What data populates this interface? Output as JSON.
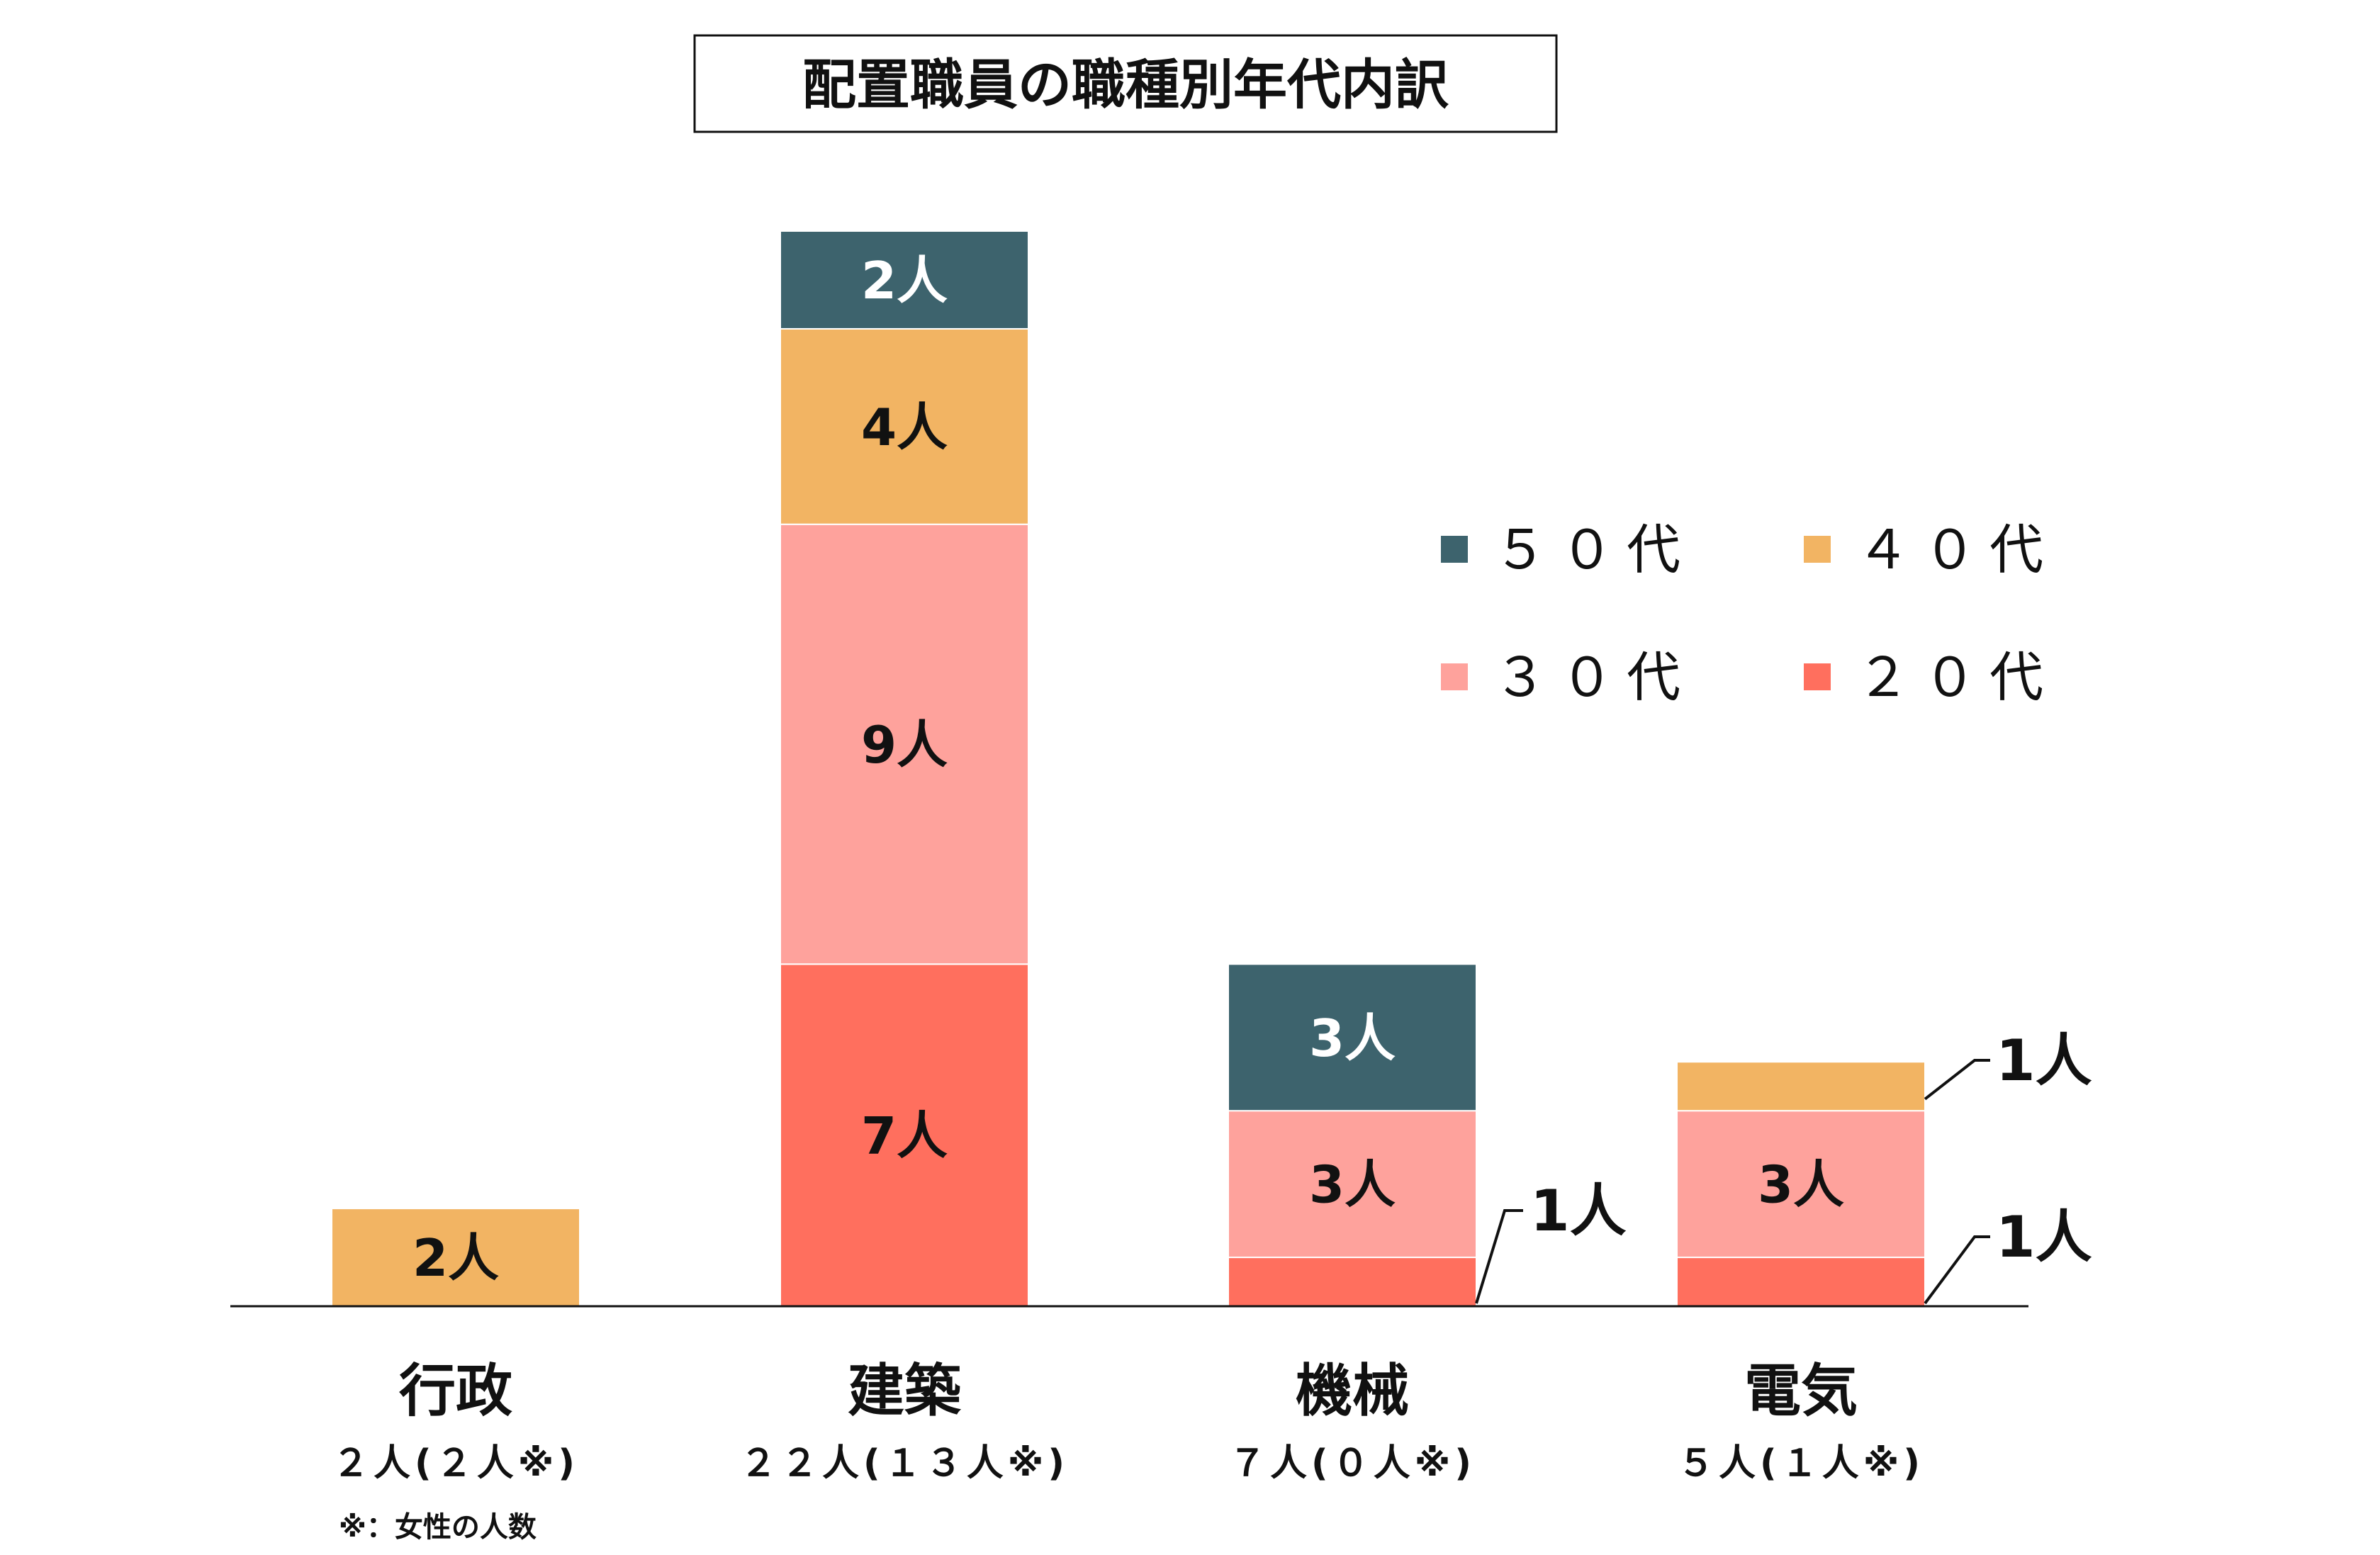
{
  "chart_data": {
    "type": "bar",
    "stacked": true,
    "title": "配置職員の職種別年代内訳",
    "categories": [
      "行政",
      "建築",
      "機械",
      "電気"
    ],
    "category_counts": [
      "２人(２人※)",
      "２２人(１３人※)",
      "７人(０人※)",
      "５人(１人※)"
    ],
    "series": [
      {
        "name": "２０代",
        "color": "#ff6f5e",
        "values": [
          0,
          7,
          1,
          1
        ]
      },
      {
        "name": "３０代",
        "color": "#fea29c",
        "values": [
          0,
          9,
          3,
          3
        ]
      },
      {
        "name": "４０代",
        "color": "#f2b463",
        "values": [
          2,
          4,
          0,
          1
        ]
      },
      {
        "name": "５０代",
        "color": "#3d636d",
        "values": [
          0,
          2,
          3,
          0
        ]
      }
    ],
    "value_suffix": "人",
    "legend_order": [
      "５０代",
      "４０代",
      "３０代",
      "２０代"
    ],
    "legend_position": "top-right",
    "ylim": [
      0,
      22
    ],
    "grid": false,
    "axes_visible": false,
    "note": "※：女性の人数"
  }
}
